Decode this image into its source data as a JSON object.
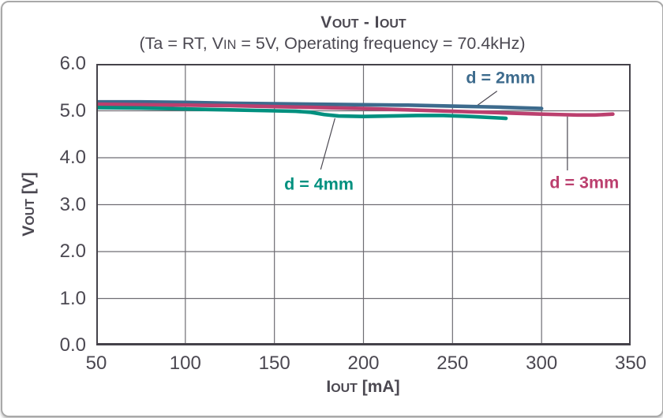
{
  "chart_data": {
    "type": "line",
    "title": "VOUT - IOUT",
    "title_parts": [
      {
        "t": "V"
      },
      {
        "t": "OUT",
        "small": true
      },
      {
        "t": " - I"
      },
      {
        "t": "OUT",
        "small": true
      }
    ],
    "subtitle": "(Ta = RT, VIN = 5V, Operating frequency = 70.4kHz)",
    "subtitle_parts": [
      {
        "t": "(Ta = RT, V"
      },
      {
        "t": "IN",
        "small": true
      },
      {
        "t": " = 5V, Operating frequency = 70.4kHz)"
      }
    ],
    "xlabel": "IOUT [mA]",
    "xlabel_parts": [
      {
        "t": "I"
      },
      {
        "t": "OUT",
        "small": true
      },
      {
        "t": " [mA]"
      }
    ],
    "ylabel": "VOUT [V]",
    "ylabel_parts": [
      {
        "t": "V"
      },
      {
        "t": "OUT",
        "small": true
      },
      {
        "t": " [V]"
      }
    ],
    "xlim": [
      50,
      350
    ],
    "ylim": [
      0.0,
      6.0
    ],
    "xticks": [
      "50",
      "100",
      "150",
      "200",
      "250",
      "300",
      "350"
    ],
    "yticks": [
      "0.0",
      "1.0",
      "2.0",
      "3.0",
      "4.0",
      "5.0",
      "6.0"
    ],
    "grid": true,
    "legend_position": "annotations-on-plot",
    "axis_color": "#45424a",
    "grid_color": "#6f6d73",
    "text_color": "#4b4851",
    "series": [
      {
        "name": "d = 2mm",
        "color": "#3d6b8d",
        "x": [
          50,
          75,
          100,
          125,
          150,
          175,
          200,
          225,
          250,
          275,
          300
        ],
        "y": [
          5.19,
          5.19,
          5.18,
          5.16,
          5.15,
          5.14,
          5.13,
          5.12,
          5.1,
          5.08,
          5.05
        ],
        "label": {
          "text": "d = 2mm",
          "x": 277,
          "y": 5.7
        },
        "leader": {
          "x1": 275,
          "y1": 5.42,
          "x2": 263,
          "y2": 5.09
        }
      },
      {
        "name": "d = 3mm",
        "color": "#bb3f6e",
        "x": [
          50,
          75,
          100,
          125,
          150,
          175,
          200,
          225,
          250,
          275,
          300,
          310,
          320,
          330,
          340
        ],
        "y": [
          5.14,
          5.13,
          5.12,
          5.11,
          5.09,
          5.07,
          5.05,
          5.02,
          4.99,
          4.96,
          4.93,
          4.92,
          4.91,
          4.91,
          4.93
        ],
        "label": {
          "text": "d = 3mm",
          "x": 324,
          "y": 3.46
        },
        "leader": {
          "x1": 314.5,
          "y1": 3.73,
          "x2": 314.5,
          "y2": 4.88
        }
      },
      {
        "name": "d = 4mm",
        "color": "#00907f",
        "x": [
          50,
          75,
          100,
          125,
          150,
          162,
          170,
          178,
          186,
          200,
          215,
          230,
          245,
          260,
          280
        ],
        "y": [
          5.07,
          5.06,
          5.04,
          5.02,
          5.0,
          4.99,
          4.97,
          4.92,
          4.89,
          4.88,
          4.89,
          4.9,
          4.9,
          4.88,
          4.84
        ],
        "label": {
          "text": "d = 4mm",
          "x": 175,
          "y": 3.43
        },
        "leader": {
          "x1": 176,
          "y1": 3.75,
          "x2": 184,
          "y2": 4.84
        }
      }
    ]
  }
}
